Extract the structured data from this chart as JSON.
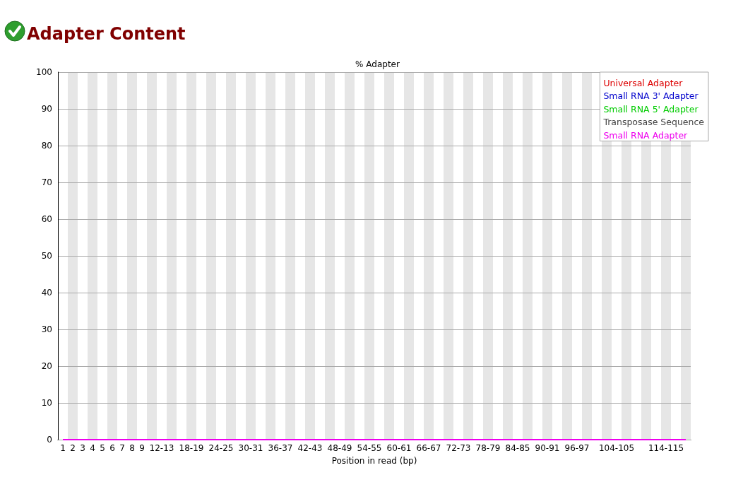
{
  "chart_data": {
    "type": "line",
    "title": "Adapter Content",
    "subtitle": "% Adapter",
    "xlabel": "Position in read (bp)",
    "categories": [
      "1",
      "2",
      "3",
      "4",
      "5",
      "6",
      "7",
      "8",
      "9",
      null,
      "12-13",
      null,
      null,
      "18-19",
      null,
      null,
      "24-25",
      null,
      null,
      "30-31",
      null,
      null,
      "36-37",
      null,
      null,
      "42-43",
      null,
      null,
      "48-49",
      null,
      null,
      "54-55",
      null,
      null,
      "60-61",
      null,
      null,
      "66-67",
      null,
      null,
      "72-73",
      null,
      null,
      "78-79",
      null,
      null,
      "84-85",
      null,
      null,
      "90-91",
      null,
      null,
      "96-97",
      null,
      null,
      null,
      "104-105",
      null,
      null,
      null,
      null,
      "114-115",
      null,
      null
    ],
    "series": [
      {
        "name": "Universal Adapter",
        "color": "#dd0000",
        "values": [
          null,
          null,
          null,
          null,
          null,
          null,
          null,
          null,
          null,
          null,
          null,
          null,
          null,
          null,
          null,
          null,
          null,
          null,
          null,
          null,
          null,
          null,
          null,
          null,
          null,
          null,
          null,
          null,
          null,
          null,
          null,
          null,
          null,
          null,
          null,
          null,
          null,
          null,
          null,
          null,
          null,
          null,
          null,
          null,
          null,
          null,
          null,
          null,
          null,
          null,
          null,
          null,
          null,
          null,
          null,
          null,
          null,
          null,
          null,
          null,
          null,
          null,
          null,
          null
        ]
      },
      {
        "name": "Small RNA 3' Adapter",
        "color": "#0000cc",
        "values": [
          null,
          null,
          null,
          null,
          null,
          null,
          null,
          null,
          null,
          null,
          null,
          null,
          null,
          null,
          null,
          null,
          null,
          null,
          null,
          null,
          null,
          null,
          null,
          null,
          null,
          null,
          null,
          null,
          null,
          null,
          null,
          null,
          null,
          null,
          null,
          null,
          null,
          null,
          null,
          null,
          null,
          null,
          null,
          null,
          null,
          null,
          null,
          null,
          null,
          null,
          null,
          null,
          null,
          null,
          null,
          null,
          null,
          null,
          null,
          null,
          null,
          null,
          null,
          null
        ]
      },
      {
        "name": "Small RNA 5' Adapter",
        "color": "#00cc00",
        "values": [
          null,
          null,
          null,
          null,
          null,
          null,
          null,
          null,
          null,
          null,
          null,
          null,
          null,
          null,
          null,
          null,
          null,
          null,
          null,
          null,
          null,
          null,
          null,
          null,
          null,
          null,
          null,
          null,
          null,
          null,
          null,
          null,
          null,
          null,
          null,
          null,
          null,
          null,
          null,
          null,
          null,
          null,
          null,
          null,
          null,
          null,
          null,
          null,
          null,
          null,
          null,
          null,
          null,
          null,
          null,
          null,
          null,
          null,
          null,
          null,
          null,
          null,
          null,
          null
        ]
      },
      {
        "name": "Transposase Sequence",
        "color": "#444444",
        "values": [
          null,
          null,
          null,
          null,
          null,
          null,
          null,
          null,
          null,
          null,
          null,
          null,
          null,
          null,
          null,
          null,
          null,
          null,
          null,
          null,
          null,
          null,
          null,
          null,
          null,
          null,
          null,
          null,
          null,
          null,
          null,
          null,
          null,
          null,
          null,
          null,
          null,
          null,
          null,
          null,
          null,
          null,
          null,
          null,
          null,
          null,
          null,
          null,
          null,
          null,
          null,
          null,
          null,
          null,
          null,
          null,
          null,
          null,
          null,
          null,
          null,
          null,
          null,
          null
        ]
      },
      {
        "name": "Small RNA Adapter",
        "color": "#ee00ee",
        "values": [
          0,
          0,
          0,
          0,
          0,
          0,
          0,
          0,
          0,
          0,
          0,
          0,
          0,
          0,
          0,
          0,
          0,
          0,
          0,
          0,
          0,
          0,
          0,
          0,
          0,
          0,
          0,
          0,
          0,
          0,
          0,
          0,
          0,
          0,
          0,
          0,
          0,
          0,
          0,
          0,
          0,
          0,
          0,
          0,
          0,
          0,
          0,
          0,
          0,
          0,
          0,
          0,
          0,
          0,
          0,
          0,
          0,
          0,
          0,
          0,
          0,
          0,
          0,
          0
        ]
      }
    ],
    "ylim": [
      0,
      100
    ],
    "yticks": [
      0,
      10,
      20,
      30,
      40,
      50,
      60,
      70,
      80,
      90,
      100
    ],
    "grid": "y",
    "legend": "top right",
    "marker": "none",
    "line_style": "solid"
  }
}
